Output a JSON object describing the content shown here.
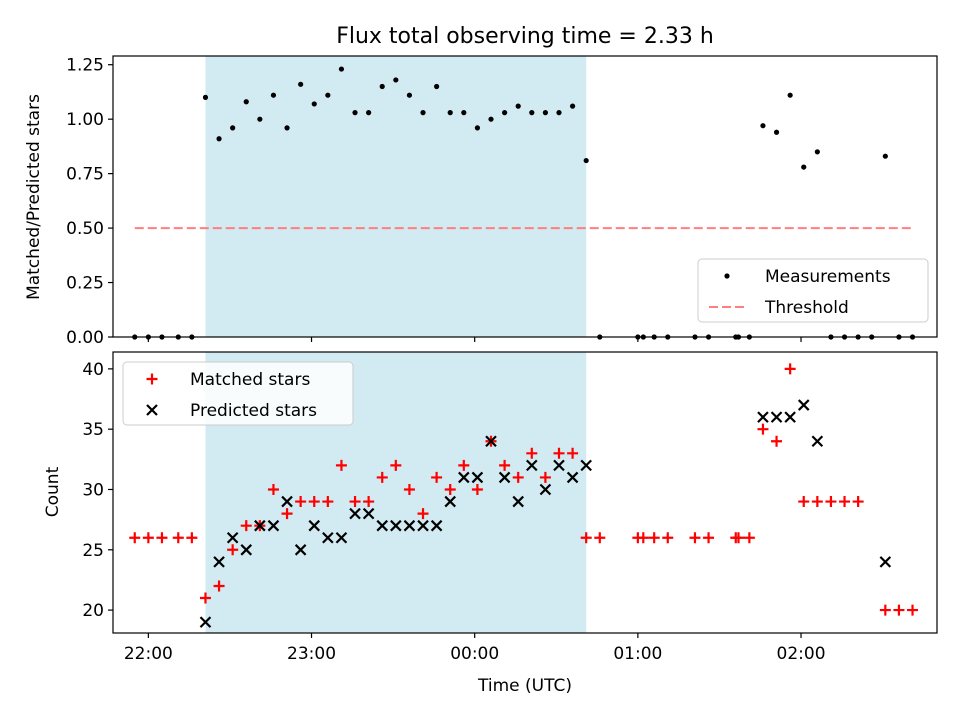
{
  "chart_data": {
    "title": "Flux total observing time = 2.33 h",
    "xlabel": "Time (UTC)",
    "x_ticks": [
      "22:00",
      "23:00",
      "00:00",
      "01:00",
      "02:00"
    ],
    "xlim": [
      "21:47",
      "02:50"
    ],
    "shaded_interval": {
      "start": "22:21",
      "end": "00:41",
      "color": "#add8e6"
    },
    "panels": [
      {
        "type": "scatter",
        "ylabel": "Matched/Predicted stars",
        "ylim": [
          0,
          1.29
        ],
        "y_ticks": [
          "0.00",
          "0.25",
          "0.50",
          "0.75",
          "1.00",
          "1.25"
        ],
        "legend_position": "lower-right",
        "series": [
          {
            "name": "Measurements",
            "marker": "dot",
            "color": "#000000",
            "points": [
              [
                "21:55",
                0
              ],
              [
                "22:00",
                0
              ],
              [
                "22:05",
                0
              ],
              [
                "22:11",
                0
              ],
              [
                "22:16",
                0
              ],
              [
                "22:21",
                1.1
              ],
              [
                "22:26",
                0.91
              ],
              [
                "22:31",
                0.96
              ],
              [
                "22:36",
                1.08
              ],
              [
                "22:41",
                1.0
              ],
              [
                "22:46",
                1.11
              ],
              [
                "22:51",
                0.96
              ],
              [
                "22:56",
                1.16
              ],
              [
                "23:01",
                1.07
              ],
              [
                "23:06",
                1.11
              ],
              [
                "23:11",
                1.23
              ],
              [
                "23:16",
                1.03
              ],
              [
                "23:21",
                1.03
              ],
              [
                "23:26",
                1.15
              ],
              [
                "23:31",
                1.18
              ],
              [
                "23:36",
                1.11
              ],
              [
                "23:41",
                1.03
              ],
              [
                "23:46",
                1.15
              ],
              [
                "23:51",
                1.03
              ],
              [
                "23:56",
                1.03
              ],
              [
                "00:01",
                0.96
              ],
              [
                "00:06",
                1.0
              ],
              [
                "00:11",
                1.03
              ],
              [
                "00:16",
                1.06
              ],
              [
                "00:21",
                1.03
              ],
              [
                "00:26",
                1.03
              ],
              [
                "00:31",
                1.03
              ],
              [
                "00:36",
                1.06
              ],
              [
                "00:41",
                0.81
              ],
              [
                "00:46",
                0
              ],
              [
                "01:00",
                0
              ],
              [
                "01:02",
                0
              ],
              [
                "01:06",
                0
              ],
              [
                "01:11",
                0
              ],
              [
                "01:21",
                0
              ],
              [
                "01:26",
                0
              ],
              [
                "01:36",
                0
              ],
              [
                "01:37",
                0
              ],
              [
                "01:41",
                0
              ],
              [
                "01:46",
                0.97
              ],
              [
                "01:51",
                0.94
              ],
              [
                "01:56",
                1.11
              ],
              [
                "02:01",
                0.78
              ],
              [
                "02:06",
                0.85
              ],
              [
                "02:11",
                0
              ],
              [
                "02:16",
                0
              ],
              [
                "02:21",
                0
              ],
              [
                "02:26",
                0
              ],
              [
                "02:31",
                0.83
              ],
              [
                "02:36",
                0
              ],
              [
                "02:41",
                0
              ]
            ]
          },
          {
            "name": "Threshold",
            "line": "dashed",
            "color": "#ff7f7f",
            "points": [
              [
                "21:55",
                0.5
              ],
              [
                "02:41",
                0.5
              ]
            ]
          }
        ]
      },
      {
        "type": "scatter",
        "ylabel": "Count",
        "ylim": [
          18.1,
          41.4
        ],
        "y_ticks": [
          "20",
          "25",
          "30",
          "35",
          "40"
        ],
        "legend_position": "upper-left",
        "series": [
          {
            "name": "Matched stars",
            "marker": "plus",
            "color": "#ff0000",
            "points": [
              [
                "21:55",
                26
              ],
              [
                "22:00",
                26
              ],
              [
                "22:05",
                26
              ],
              [
                "22:11",
                26
              ],
              [
                "22:16",
                26
              ],
              [
                "22:21",
                21
              ],
              [
                "22:26",
                22
              ],
              [
                "22:31",
                25
              ],
              [
                "22:36",
                27
              ],
              [
                "22:41",
                27
              ],
              [
                "22:46",
                30
              ],
              [
                "22:51",
                28
              ],
              [
                "22:56",
                29
              ],
              [
                "23:01",
                29
              ],
              [
                "23:06",
                29
              ],
              [
                "23:11",
                32
              ],
              [
                "23:16",
                29
              ],
              [
                "23:21",
                29
              ],
              [
                "23:26",
                31
              ],
              [
                "23:31",
                32
              ],
              [
                "23:36",
                30
              ],
              [
                "23:41",
                28
              ],
              [
                "23:46",
                31
              ],
              [
                "23:51",
                30
              ],
              [
                "23:56",
                32
              ],
              [
                "00:01",
                30
              ],
              [
                "00:06",
                34
              ],
              [
                "00:11",
                32
              ],
              [
                "00:16",
                31
              ],
              [
                "00:21",
                33
              ],
              [
                "00:26",
                31
              ],
              [
                "00:31",
                33
              ],
              [
                "00:36",
                33
              ],
              [
                "00:41",
                26
              ],
              [
                "00:46",
                26
              ],
              [
                "01:00",
                26
              ],
              [
                "01:02",
                26
              ],
              [
                "01:06",
                26
              ],
              [
                "01:11",
                26
              ],
              [
                "01:21",
                26
              ],
              [
                "01:26",
                26
              ],
              [
                "01:36",
                26
              ],
              [
                "01:37",
                26
              ],
              [
                "01:41",
                26
              ],
              [
                "01:46",
                35
              ],
              [
                "01:51",
                34
              ],
              [
                "01:56",
                40
              ],
              [
                "02:01",
                29
              ],
              [
                "02:06",
                29
              ],
              [
                "02:11",
                29
              ],
              [
                "02:16",
                29
              ],
              [
                "02:21",
                29
              ],
              [
                "02:31",
                20
              ],
              [
                "02:36",
                20
              ],
              [
                "02:41",
                20
              ]
            ]
          },
          {
            "name": "Predicted stars",
            "marker": "x",
            "color": "#000000",
            "points": [
              [
                "22:21",
                19
              ],
              [
                "22:26",
                24
              ],
              [
                "22:31",
                26
              ],
              [
                "22:36",
                25
              ],
              [
                "22:41",
                27
              ],
              [
                "22:46",
                27
              ],
              [
                "22:51",
                29
              ],
              [
                "22:56",
                25
              ],
              [
                "23:01",
                27
              ],
              [
                "23:06",
                26
              ],
              [
                "23:11",
                26
              ],
              [
                "23:16",
                28
              ],
              [
                "23:21",
                28
              ],
              [
                "23:26",
                27
              ],
              [
                "23:31",
                27
              ],
              [
                "23:36",
                27
              ],
              [
                "23:41",
                27
              ],
              [
                "23:46",
                27
              ],
              [
                "23:51",
                29
              ],
              [
                "23:56",
                31
              ],
              [
                "00:01",
                31
              ],
              [
                "00:06",
                34
              ],
              [
                "00:11",
                31
              ],
              [
                "00:16",
                29
              ],
              [
                "00:21",
                32
              ],
              [
                "00:26",
                30
              ],
              [
                "00:31",
                32
              ],
              [
                "00:36",
                31
              ],
              [
                "00:41",
                32
              ],
              [
                "01:46",
                36
              ],
              [
                "01:51",
                36
              ],
              [
                "01:56",
                36
              ],
              [
                "02:01",
                37
              ],
              [
                "02:06",
                34
              ],
              [
                "02:31",
                24
              ]
            ]
          }
        ]
      }
    ]
  }
}
